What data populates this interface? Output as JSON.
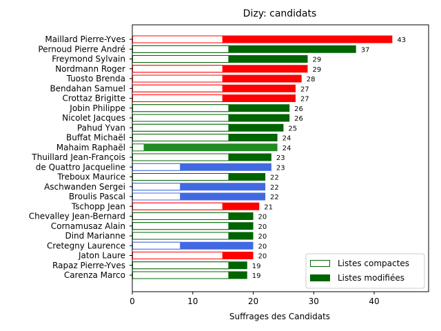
{
  "chart_data": {
    "type": "bar",
    "orientation": "horizontal",
    "title": "Dizy: candidats",
    "xlabel": "Suffrages des Candidats",
    "ylabel": "",
    "xlim": [
      0,
      49
    ],
    "xticks": [
      0,
      10,
      20,
      30,
      40
    ],
    "grid": false,
    "legend_position": "bottom-right",
    "legend": [
      {
        "label": "Listes compactes",
        "style": "outline",
        "color": "#006400"
      },
      {
        "label": "Listes modifiées",
        "style": "filled",
        "color": "#006400"
      }
    ],
    "candidates": [
      {
        "name": "Maillard Pierre-Yves",
        "compact": 15,
        "total": 43,
        "color": "#ff0000"
      },
      {
        "name": "Pernoud Pierre André",
        "compact": 16,
        "total": 37,
        "color": "#006400"
      },
      {
        "name": "Freymond Sylvain",
        "compact": 16,
        "total": 29,
        "color": "#006400"
      },
      {
        "name": "Nordmann Roger",
        "compact": 15,
        "total": 29,
        "color": "#ff0000"
      },
      {
        "name": "Tuosto Brenda",
        "compact": 15,
        "total": 28,
        "color": "#ff0000"
      },
      {
        "name": "Bendahan Samuel",
        "compact": 15,
        "total": 27,
        "color": "#ff0000"
      },
      {
        "name": "Crottaz Brigitte",
        "compact": 15,
        "total": 27,
        "color": "#ff0000"
      },
      {
        "name": "Jobin Philippe",
        "compact": 16,
        "total": 26,
        "color": "#006400"
      },
      {
        "name": "Nicolet Jacques",
        "compact": 16,
        "total": 26,
        "color": "#006400"
      },
      {
        "name": "Pahud Yvan",
        "compact": 16,
        "total": 25,
        "color": "#006400"
      },
      {
        "name": "Buffat Michaël",
        "compact": 16,
        "total": 24,
        "color": "#006400"
      },
      {
        "name": "Mahaim Raphaël",
        "compact": 2,
        "total": 24,
        "color": "#228b22"
      },
      {
        "name": "Thuillard Jean-François",
        "compact": 16,
        "total": 23,
        "color": "#006400"
      },
      {
        "name": "de Quattro Jacqueline",
        "compact": 8,
        "total": 23,
        "color": "#4169e1"
      },
      {
        "name": "Treboux Maurice",
        "compact": 16,
        "total": 22,
        "color": "#006400"
      },
      {
        "name": "Aschwanden Sergei",
        "compact": 8,
        "total": 22,
        "color": "#4169e1"
      },
      {
        "name": "Broulis Pascal",
        "compact": 8,
        "total": 22,
        "color": "#4169e1"
      },
      {
        "name": "Tschopp Jean",
        "compact": 15,
        "total": 21,
        "color": "#ff0000"
      },
      {
        "name": "Chevalley Jean-Bernard",
        "compact": 16,
        "total": 20,
        "color": "#006400"
      },
      {
        "name": "Cornamusaz Alain",
        "compact": 16,
        "total": 20,
        "color": "#006400"
      },
      {
        "name": "Dind Marianne",
        "compact": 16,
        "total": 20,
        "color": "#006400"
      },
      {
        "name": "Cretegny Laurence",
        "compact": 8,
        "total": 20,
        "color": "#4169e1"
      },
      {
        "name": "Jaton Laure",
        "compact": 15,
        "total": 20,
        "color": "#ff0000"
      },
      {
        "name": "Rapaz Pierre-Yves",
        "compact": 16,
        "total": 19,
        "color": "#006400"
      },
      {
        "name": "Carenza Marco",
        "compact": 16,
        "total": 19,
        "color": "#006400"
      }
    ]
  }
}
